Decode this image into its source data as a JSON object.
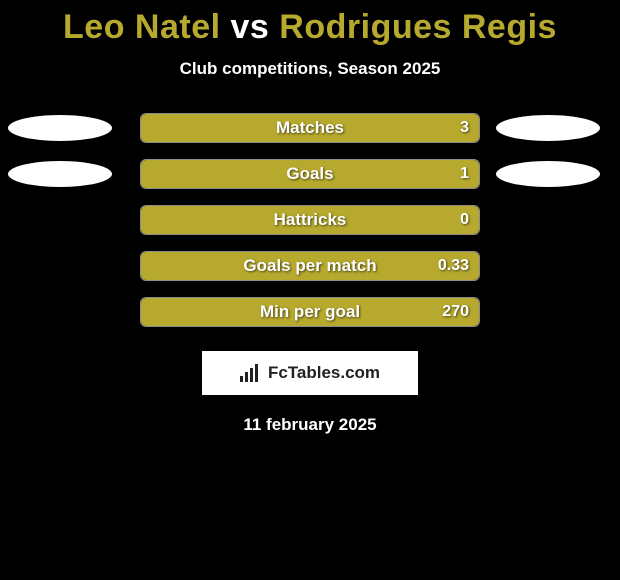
{
  "title": {
    "player1": "Leo Natel",
    "vs": "vs",
    "player2": "Rodrigues Regis",
    "player1_color": "#b6a92e",
    "vs_color": "#ffffff",
    "player2_color": "#b6a92e",
    "fontsize": 34
  },
  "subtitle": {
    "text": "Club competitions, Season 2025",
    "fontsize": 17
  },
  "ovals": {
    "left_color": "#ffffff",
    "right_color": "#ffffff"
  },
  "rows": [
    {
      "label": "Matches",
      "value": "3",
      "fill_pct": 100,
      "fill_color": "#b6a92e",
      "show_left_oval": true,
      "show_right_oval": true
    },
    {
      "label": "Goals",
      "value": "1",
      "fill_pct": 100,
      "fill_color": "#b6a92e",
      "show_left_oval": true,
      "show_right_oval": true
    },
    {
      "label": "Hattricks",
      "value": "0",
      "fill_pct": 100,
      "fill_color": "#b6a92e",
      "show_left_oval": false,
      "show_right_oval": false
    },
    {
      "label": "Goals per match",
      "value": "0.33",
      "fill_pct": 100,
      "fill_color": "#b6a92e",
      "show_left_oval": false,
      "show_right_oval": false
    },
    {
      "label": "Min per goal",
      "value": "270",
      "fill_pct": 100,
      "fill_color": "#b6a92e",
      "show_left_oval": false,
      "show_right_oval": false
    }
  ],
  "bar_style": {
    "label_fontsize": 17,
    "value_fontsize": 16
  },
  "brand": {
    "text": "FcTables.com",
    "fontsize": 17
  },
  "date": {
    "text": "11 february 2025",
    "fontsize": 17
  }
}
